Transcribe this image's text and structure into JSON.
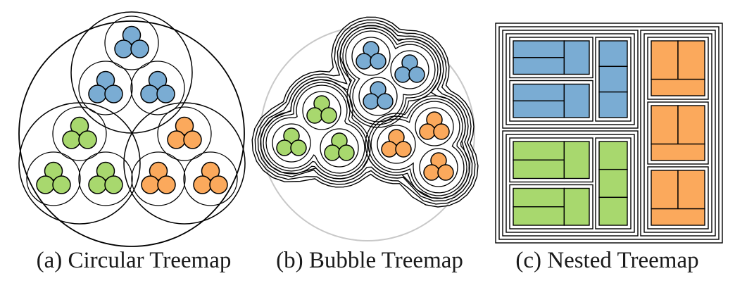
{
  "colors": {
    "blue": "#7aacd3",
    "green": "#a8d86e",
    "orange": "#fba95c",
    "stroke": "#000000",
    "outline_gray": "#c8c8c8"
  },
  "captions": {
    "a": "(a) Circular Treemap",
    "b": "(b) Bubble Treemap",
    "c": "(c) Nested Treemap"
  },
  "hierarchy": {
    "groups": [
      {
        "color": "blue",
        "subgroups": [
          3,
          3,
          3
        ]
      },
      {
        "color": "green",
        "subgroups": [
          3,
          3,
          3
        ]
      },
      {
        "color": "orange",
        "subgroups": [
          3,
          3,
          3
        ]
      }
    ]
  }
}
